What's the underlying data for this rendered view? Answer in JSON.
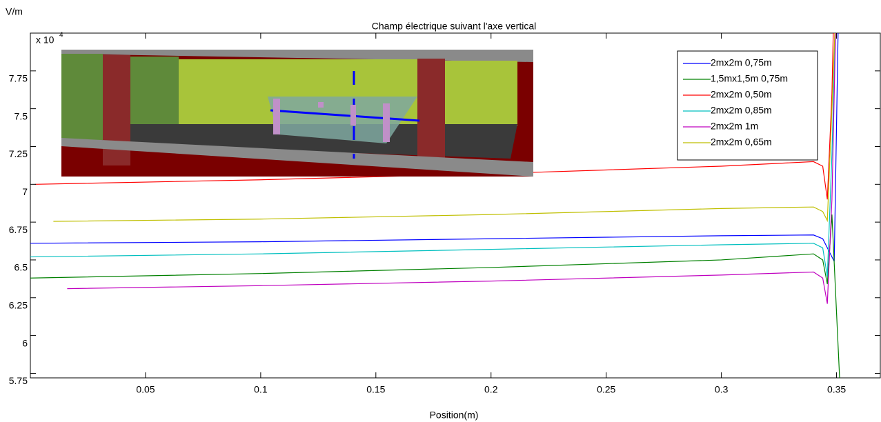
{
  "chart_data": {
    "type": "line",
    "title": "Champ électrique suivant l'axe vertical",
    "y_unit": "V/m",
    "y_exponent": "x 10",
    "y_exponent_power": "4",
    "x_label": "Position(m)",
    "xlim": [
      0,
      0.369
    ],
    "ylim": [
      5.72,
      8.0
    ],
    "xticks": [
      0.05,
      0.1,
      0.15,
      0.2,
      0.25,
      0.3,
      0.35
    ],
    "yticks": [
      5.75,
      6,
      6.25,
      6.5,
      6.75,
      7,
      7.25,
      7.5,
      7.75
    ],
    "legend": "upper right",
    "series": [
      {
        "name": "2mx2m 0,75m",
        "color": "#0000ff",
        "x": [
          0,
          0.1,
          0.2,
          0.3,
          0.34,
          0.344,
          0.347,
          0.349,
          0.351
        ],
        "values": [
          6.61,
          6.62,
          6.64,
          6.66,
          6.665,
          6.64,
          6.55,
          6.49,
          8.3
        ]
      },
      {
        "name": "1,5mx1,5m 0,75m",
        "color": "#008000",
        "x": [
          0,
          0.1,
          0.2,
          0.3,
          0.34,
          0.344,
          0.346,
          0.348,
          0.352
        ],
        "values": [
          6.38,
          6.41,
          6.45,
          6.5,
          6.54,
          6.5,
          6.34,
          6.8,
          5.5
        ]
      },
      {
        "name": "2mx2m 0,50m",
        "color": "#ff0000",
        "x": [
          0.002,
          0.1,
          0.2,
          0.3,
          0.34,
          0.344,
          0.346,
          0.348,
          0.349
        ],
        "values": [
          7.0,
          7.03,
          7.07,
          7.12,
          7.15,
          7.12,
          6.9,
          7.6,
          8.3
        ]
      },
      {
        "name": "2mx2m 0,85m",
        "color": "#00bfbf",
        "x": [
          0,
          0.1,
          0.2,
          0.3,
          0.34,
          0.344,
          0.346,
          0.348,
          0.35
        ],
        "values": [
          6.52,
          6.54,
          6.57,
          6.6,
          6.61,
          6.58,
          6.39,
          7.2,
          8.3
        ]
      },
      {
        "name": "2mx2m 1m",
        "color": "#bf00bf",
        "x": [
          0.016,
          0.1,
          0.2,
          0.3,
          0.34,
          0.344,
          0.346,
          0.348,
          0.35
        ],
        "values": [
          6.31,
          6.33,
          6.36,
          6.4,
          6.42,
          6.38,
          6.21,
          6.9,
          8.3
        ]
      },
      {
        "name": "2mx2m 0,65m",
        "color": "#bfbf00",
        "x": [
          0.01,
          0.1,
          0.2,
          0.3,
          0.34,
          0.344,
          0.346,
          0.348,
          0.35
        ],
        "values": [
          6.755,
          6.77,
          6.8,
          6.84,
          6.85,
          6.82,
          6.76,
          7.5,
          8.3
        ]
      }
    ]
  }
}
